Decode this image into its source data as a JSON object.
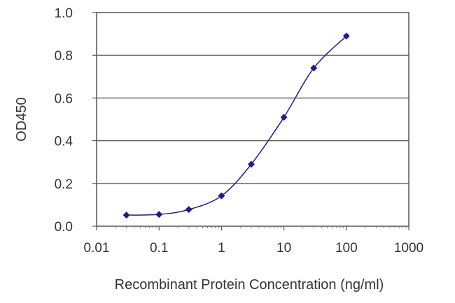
{
  "chart_data": {
    "type": "line",
    "xlabel": "Recombinant Protein Concentration (ng/ml)",
    "ylabel": "OD450",
    "xscale": "log",
    "xlim": [
      0.01,
      1000
    ],
    "ylim": [
      0.0,
      1.0
    ],
    "grid": "horizontal",
    "x_tick_labels": [
      "0.01",
      "0.1",
      "1",
      "10",
      "100",
      "1000"
    ],
    "x_tick_values": [
      0.01,
      0.1,
      1,
      10,
      100,
      1000
    ],
    "y_tick_labels": [
      "0.0",
      "0.2",
      "0.4",
      "0.6",
      "0.8",
      "1.0"
    ],
    "y_tick_values": [
      0.0,
      0.2,
      0.4,
      0.6,
      0.8,
      1.0
    ],
    "series": [
      {
        "x": [
          0.03,
          0.1,
          0.3,
          1,
          3,
          10,
          30,
          100
        ],
        "y": [
          0.052,
          0.055,
          0.078,
          0.142,
          0.29,
          0.51,
          0.74,
          0.89
        ]
      }
    ],
    "color": "#1f1f80"
  }
}
